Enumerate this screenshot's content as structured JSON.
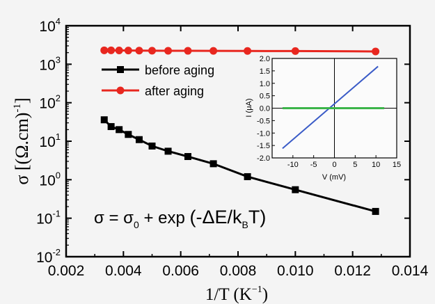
{
  "chart_data": [
    {
      "type": "scatter",
      "xlabel": "1/T (K",
      "xlabel_sup": "−1",
      "xlabel_close": ")",
      "ylabel": "σ [(Ω.cm)",
      "ylabel_sup": "-1",
      "ylabel_close": "]",
      "xlim": [
        0.002,
        0.014
      ],
      "ylim": [
        0.01,
        10000
      ],
      "yscale": "log",
      "x_ticks": [
        0.002,
        0.004,
        0.006,
        0.008,
        0.01,
        0.012,
        0.014
      ],
      "x_tick_labels": [
        "0.002",
        "0.004",
        "0.006",
        "0.008",
        "0.010",
        "0.012",
        "0.014"
      ],
      "y_ticks": [
        0.01,
        0.1,
        1,
        10,
        100,
        1000,
        10000
      ],
      "y_tick_base": [
        "10",
        "10",
        "10",
        "10",
        "10",
        "10",
        "10"
      ],
      "y_tick_exp": [
        "-2",
        "-1",
        "0",
        "1",
        "2",
        "3",
        "4"
      ],
      "legend_position": "top-left",
      "series": [
        {
          "name": "before aging",
          "color": "#000000",
          "marker": "square",
          "x": [
            0.00333,
            0.00357,
            0.00385,
            0.00417,
            0.00455,
            0.005,
            0.00556,
            0.00625,
            0.00714,
            0.00833,
            0.01,
            0.0128
          ],
          "y": [
            36,
            24,
            20,
            15,
            11,
            7.5,
            5.5,
            4.0,
            2.6,
            1.2,
            0.55,
            0.15
          ]
        },
        {
          "name": "after aging",
          "color": "#e8271f",
          "marker": "circle",
          "x": [
            0.00333,
            0.00357,
            0.00385,
            0.00417,
            0.00455,
            0.005,
            0.00556,
            0.00625,
            0.00714,
            0.00833,
            0.01,
            0.0128
          ],
          "y": [
            2300,
            2300,
            2280,
            2270,
            2260,
            2250,
            2240,
            2230,
            2220,
            2210,
            2200,
            2150
          ]
        }
      ],
      "annotation": {
        "p1": "σ = σ",
        "p1_sub": "0",
        "p2": " + exp ",
        "p3": "(-ΔE/k",
        "p3_sub": "B",
        "p4": "T)"
      }
    },
    {
      "type": "line",
      "inset": true,
      "xlabel": "V (mV)",
      "ylabel": "I (μA)",
      "xlim": [
        -15,
        15
      ],
      "ylim": [
        -2.0,
        2.0
      ],
      "x_ticks": [
        -10,
        -5,
        0,
        5,
        10,
        15
      ],
      "x_tick_labels": [
        "-10",
        "-5",
        "0",
        "5",
        "10",
        "15"
      ],
      "y_ticks": [
        -2.0,
        -1.5,
        -1.0,
        -0.5,
        0.0,
        0.5,
        1.0,
        1.5,
        2.0
      ],
      "y_tick_labels": [
        "-2.0",
        "-1.5",
        "-1.0",
        "-0.5",
        "0.0",
        "0.5",
        "1.0",
        "1.5",
        "2.0"
      ],
      "series": [
        {
          "color": "#3a5bc7",
          "x": [
            -12.5,
            10.5
          ],
          "y": [
            -1.62,
            1.68
          ]
        },
        {
          "color": "#3cb54a",
          "x": [
            -12.5,
            12
          ],
          "y": [
            0.0,
            0.0
          ]
        }
      ]
    }
  ]
}
